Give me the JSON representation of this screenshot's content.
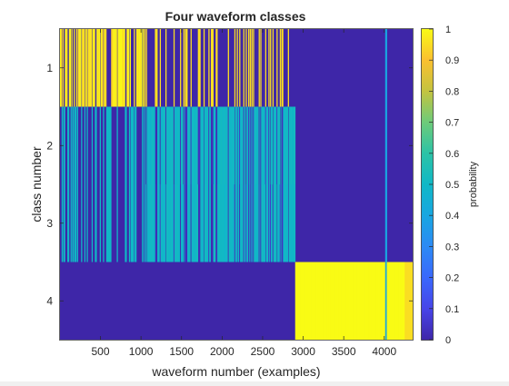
{
  "figure": {
    "title": "Four waveform classes",
    "xlabel": "waveform number (examples)",
    "ylabel": "class number",
    "colorbar_label": "probability"
  },
  "chart_data": {
    "type": "heatmap",
    "title": "Four waveform classes",
    "xlabel": "waveform number (examples)",
    "ylabel": "class number",
    "xlim": [
      1,
      4350
    ],
    "x_ticks": [
      500,
      1000,
      1500,
      2000,
      2500,
      3000,
      3500,
      4000
    ],
    "y_categories": [
      "1",
      "2",
      "3",
      "4"
    ],
    "colorbar": {
      "label": "probability",
      "range": [
        0,
        1
      ],
      "ticks": [
        "0",
        "0.1",
        "0.2",
        "0.3",
        "0.4",
        "0.5",
        "0.6",
        "0.7",
        "0.8",
        "0.9",
        "1"
      ],
      "colormap": "parula"
    },
    "segments": [
      {
        "x_range": [
          1,
          1030
        ],
        "description_values": {
          "class1": "mostly ~0.9-1 with stripes ~0",
          "class2": "mostly ~0 with stripes ~0.5",
          "class3": "mostly ~0 with stripes ~0.5",
          "class4": 0
        }
      },
      {
        "x_range": [
          1030,
          2900
        ],
        "description_values": {
          "class1": "mixed 0 / 1 stripes",
          "class2": 0.5,
          "class3": 0.5,
          "class4": 0
        }
      },
      {
        "x_range": [
          2900,
          4350
        ],
        "description_values": {
          "class1": 0,
          "class2": 0,
          "class3": 0,
          "class4": 1
        }
      },
      {
        "x_range": [
          4010,
          4025
        ],
        "description_values": {
          "class1": 0.4,
          "class2": 0.4,
          "class3": 0.4,
          "class4": 0.4
        }
      }
    ],
    "grid": false
  },
  "colors": {
    "low": "#3e26a8",
    "mid": "#2cb9b0",
    "high": "#f9fb15",
    "axis": "#262626"
  }
}
